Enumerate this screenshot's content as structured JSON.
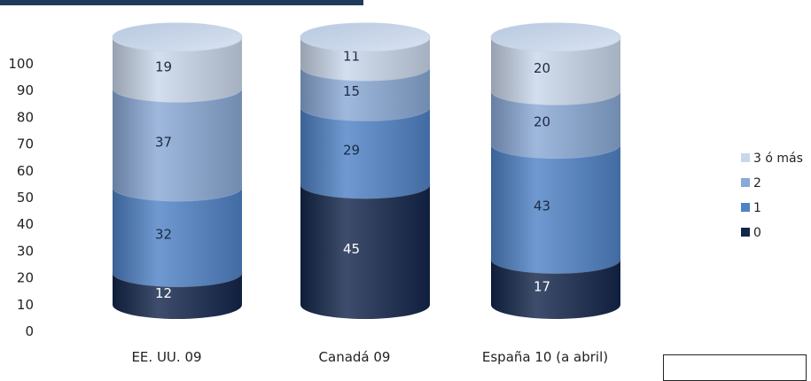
{
  "chart_data": {
    "type": "bar",
    "stacked": true,
    "style": "3d-cylinder",
    "categories": [
      "EE. UU. 09",
      "Canadá 09",
      "España 10 (a abril)"
    ],
    "series": [
      {
        "name": "0",
        "values": [
          12,
          45,
          17
        ],
        "color": "#13264a",
        "label_color": "#ffffff"
      },
      {
        "name": "1",
        "values": [
          32,
          29,
          43
        ],
        "color": "#4f83c6",
        "label_color": "#1b2b44"
      },
      {
        "name": "2",
        "values": [
          37,
          15,
          20
        ],
        "color": "#8aa9d6",
        "label_color": "#1b2b44"
      },
      {
        "name": "3 ó más",
        "values": [
          19,
          11,
          20
        ],
        "color": "#c9d7ea",
        "label_color": "#1b2b44"
      }
    ],
    "yticks": [
      0,
      10,
      20,
      30,
      40,
      50,
      60,
      70,
      80,
      90,
      100
    ],
    "ylim": [
      0,
      100
    ],
    "legend_position": "right",
    "legend_order": [
      "3 ó más",
      "2",
      "1",
      "0"
    ],
    "grid": false
  }
}
